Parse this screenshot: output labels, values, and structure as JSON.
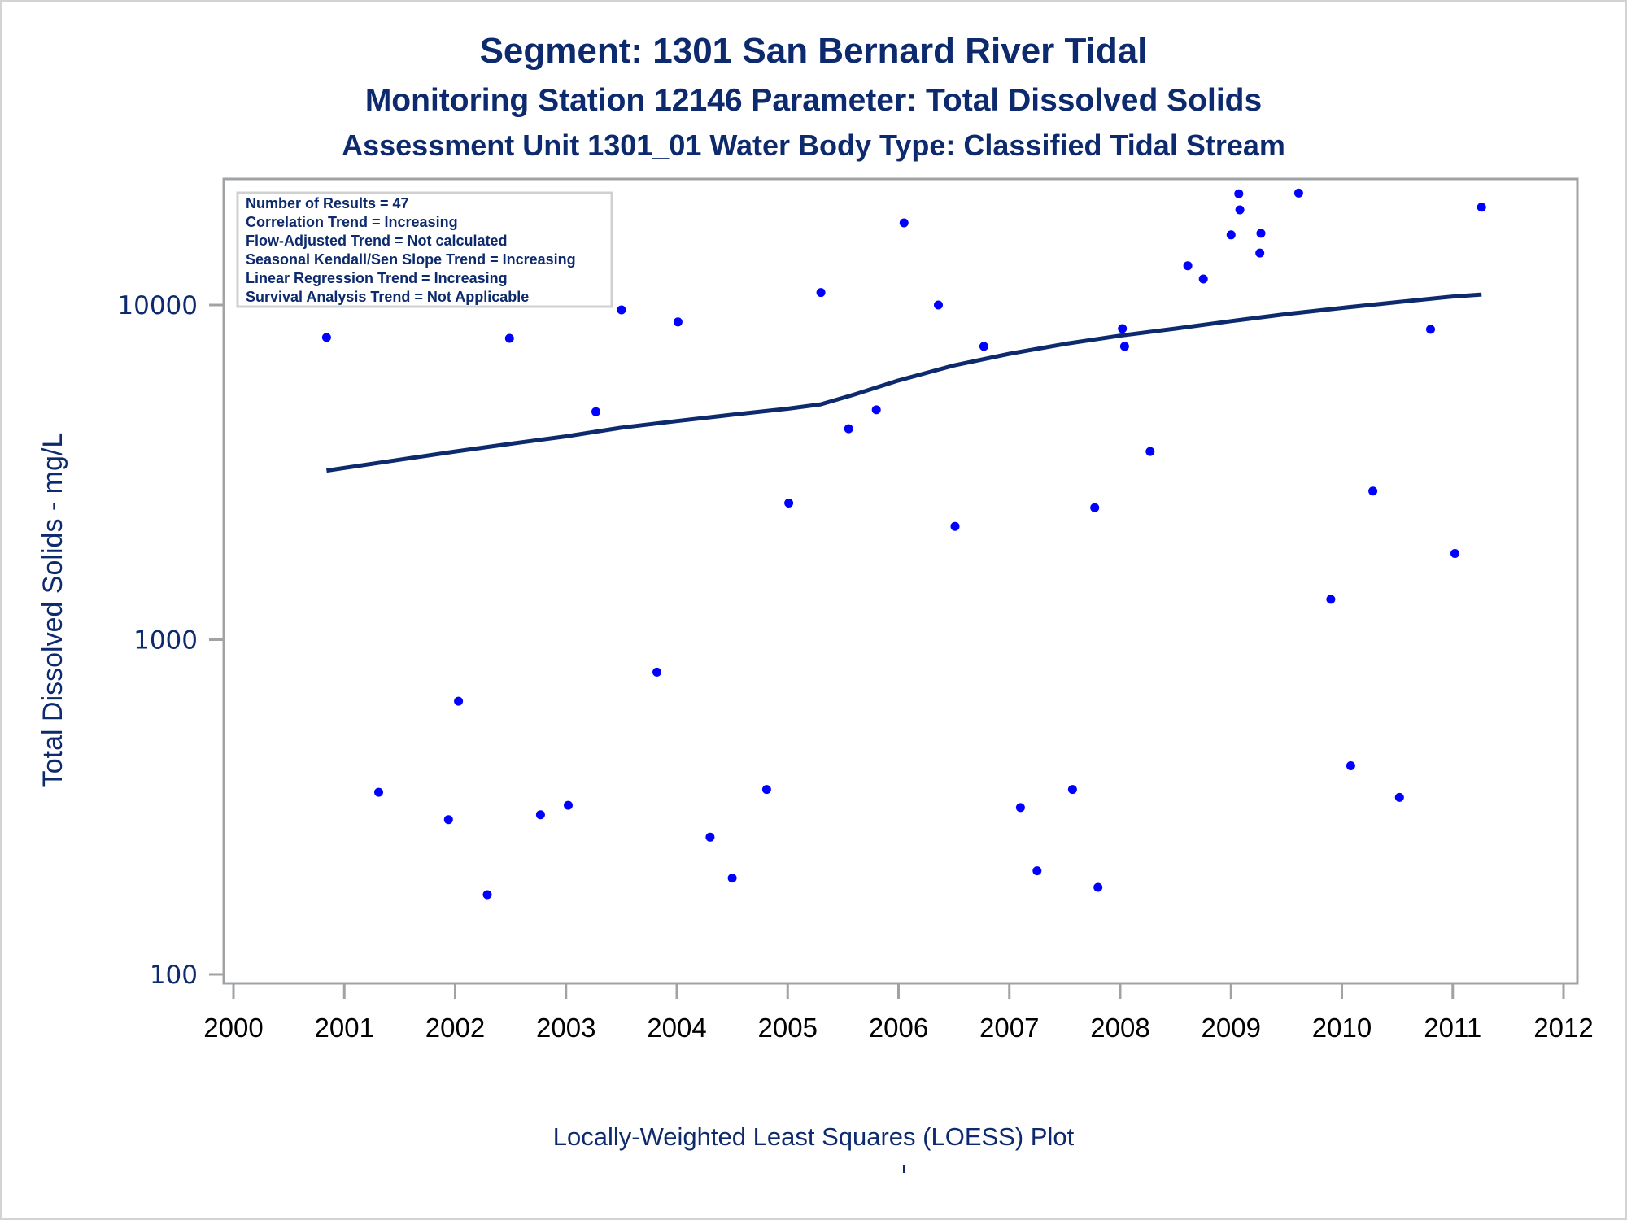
{
  "titles": {
    "line1": "Segment: 1301  San Bernard River Tidal",
    "line2": "Monitoring Station 12146 Parameter: Total Dissolved Solids",
    "line3": "Assessment Unit 1301_01   Water Body Type: Classified Tidal Stream"
  },
  "footnote": "Locally-Weighted Least Squares (LOESS) Plot",
  "colors": {
    "title": "#0d2a6e",
    "points": "#0000ff",
    "loess": "#0d2a6e",
    "frame": "#a0a3a6",
    "inset_border": "#d0d0d0"
  },
  "chart_data": {
    "type": "scatter",
    "title": "Segment: 1301  San Bernard River Tidal",
    "subtitle": [
      "Monitoring Station 12146 Parameter: Total Dissolved Solids",
      "Assessment Unit 1301_01   Water Body Type: Classified Tidal Stream"
    ],
    "xlabel": "",
    "ylabel": "Total Dissolved Solids - mg/L",
    "yscale": "log",
    "xlim": [
      2000,
      2012
    ],
    "ylim": [
      100,
      23000
    ],
    "xticks": [
      "2000",
      "2001",
      "2002",
      "2003",
      "2004",
      "2005",
      "2006",
      "2007",
      "2008",
      "2009",
      "2010",
      "2011",
      "2012"
    ],
    "yticks": [
      "100",
      "1000",
      "10000"
    ],
    "grid": false,
    "annotation_box": {
      "position": "top-left",
      "lines": [
        "Number of Results = 47",
        "Correlation Trend = Increasing",
        "Flow-Adjusted Trend = Not calculated",
        "Seasonal Kendall/Sen Slope Trend = Increasing",
        "Linear Regression Trend = Increasing",
        "Survival Analysis Trend = Not Applicable"
      ]
    },
    "series": [
      {
        "name": "Observations",
        "type": "scatter",
        "points": [
          [
            2000.84,
            8000
          ],
          [
            2001.31,
            350
          ],
          [
            2001.57,
            12600
          ],
          [
            2001.94,
            290
          ],
          [
            2002.03,
            655
          ],
          [
            2002.29,
            173
          ],
          [
            2002.49,
            7950
          ],
          [
            2002.77,
            300
          ],
          [
            2003.02,
            320
          ],
          [
            2003.27,
            4800
          ],
          [
            2003.5,
            9670
          ],
          [
            2003.82,
            800
          ],
          [
            2004.01,
            8900
          ],
          [
            2004.3,
            257
          ],
          [
            2004.5,
            194
          ],
          [
            2004.81,
            357
          ],
          [
            2005.01,
            2560
          ],
          [
            2005.3,
            10900
          ],
          [
            2005.55,
            4270
          ],
          [
            2005.8,
            4860
          ],
          [
            2006.05,
            17600
          ],
          [
            2006.36,
            10000
          ],
          [
            2006.51,
            2180
          ],
          [
            2006.77,
            7520
          ],
          [
            2007.1,
            315
          ],
          [
            2007.25,
            204
          ],
          [
            2007.57,
            357
          ],
          [
            2007.77,
            2480
          ],
          [
            2007.8,
            182
          ],
          [
            2008.02,
            8500
          ],
          [
            2008.04,
            7520
          ],
          [
            2008.27,
            3650
          ],
          [
            2008.61,
            13100
          ],
          [
            2008.75,
            11960
          ],
          [
            2009.0,
            16200
          ],
          [
            2009.07,
            21500
          ],
          [
            2009.08,
            19250
          ],
          [
            2009.27,
            16370
          ],
          [
            2009.26,
            14300
          ],
          [
            2009.61,
            21600
          ],
          [
            2009.9,
            1320
          ],
          [
            2010.08,
            420
          ],
          [
            2010.28,
            2780
          ],
          [
            2010.52,
            338
          ],
          [
            2010.8,
            8460
          ],
          [
            2011.02,
            1810
          ],
          [
            2011.26,
            19600
          ]
        ]
      },
      {
        "name": "LOESS",
        "type": "line",
        "points": [
          [
            2000.84,
            3200
          ],
          [
            2001.5,
            3450
          ],
          [
            2002.0,
            3650
          ],
          [
            2002.5,
            3850
          ],
          [
            2003.0,
            4050
          ],
          [
            2003.5,
            4300
          ],
          [
            2004.0,
            4500
          ],
          [
            2004.5,
            4700
          ],
          [
            2005.0,
            4900
          ],
          [
            2005.3,
            5050
          ],
          [
            2005.6,
            5400
          ],
          [
            2006.0,
            5950
          ],
          [
            2006.5,
            6600
          ],
          [
            2007.0,
            7150
          ],
          [
            2007.5,
            7650
          ],
          [
            2008.0,
            8100
          ],
          [
            2008.5,
            8500
          ],
          [
            2009.0,
            8950
          ],
          [
            2009.5,
            9400
          ],
          [
            2010.0,
            9800
          ],
          [
            2010.5,
            10200
          ],
          [
            2011.0,
            10600
          ],
          [
            2011.26,
            10750
          ]
        ]
      }
    ]
  }
}
